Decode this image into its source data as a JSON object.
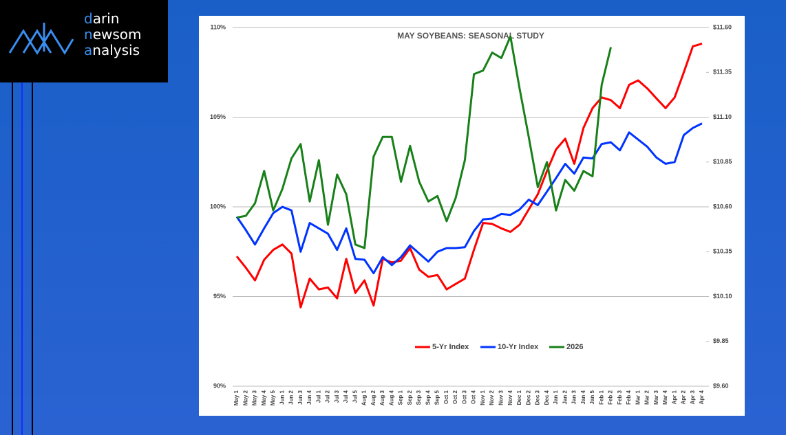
{
  "logo": {
    "lines": [
      "darin",
      "newsom",
      "analysis"
    ]
  },
  "chart_data": {
    "type": "line",
    "title": "MAY SOYBEANS: SEASONAL STUDY",
    "categories": [
      "May 1",
      "May 2",
      "May 3",
      "May 4",
      "May 5",
      "Jun 1",
      "Jun 2",
      "Jun 3",
      "Jun 4",
      "Jul 1",
      "Jul 2",
      "Jul 3",
      "Jul 4",
      "Jul 5",
      "Aug 1",
      "Aug 2",
      "Aug 3",
      "Aug 4",
      "Sep 1",
      "Sep 2",
      "Sep 3",
      "Sep 4",
      "Sep 5",
      "Oct 1",
      "Oct 2",
      "Oct 3",
      "Oct 4",
      "Nov 1",
      "Nov 2",
      "Nov 3",
      "Nov 4",
      "Dec 1",
      "Dec 2",
      "Dec 3",
      "Dec 4",
      "Jan 1",
      "Jan 2",
      "Jan 3",
      "Jan 4",
      "Jan 5",
      "Feb 1",
      "Feb 2",
      "Feb 3",
      "Feb 4",
      "Mar 1",
      "Mar 2",
      "Mar 3",
      "Mar 4",
      "Apr 1",
      "Apr 2",
      "Apr 3",
      "Apr 4"
    ],
    "series": [
      {
        "name": "5-Yr Index",
        "color": "#ff0000",
        "values": [
          97.24,
          96.6,
          95.9,
          97.05,
          97.6,
          97.9,
          97.4,
          94.4,
          96.0,
          95.4,
          95.5,
          94.9,
          97.1,
          95.2,
          95.9,
          94.5,
          97.1,
          96.9,
          97.0,
          97.7,
          96.5,
          96.1,
          96.2,
          95.4,
          95.7,
          96.0,
          97.6,
          99.1,
          99.05,
          98.8,
          98.6,
          99.0,
          99.85,
          100.7,
          102.0,
          103.2,
          103.8,
          102.4,
          104.4,
          105.5,
          106.1,
          105.95,
          105.5,
          106.8,
          107.05,
          106.6,
          106.05,
          105.5,
          106.1,
          107.5,
          108.95,
          109.1
        ]
      },
      {
        "name": "10-Yr Index",
        "color": "#0033ff",
        "values": [
          99.45,
          98.7,
          97.9,
          98.8,
          99.65,
          100.0,
          99.8,
          97.5,
          99.1,
          98.8,
          98.5,
          97.6,
          98.8,
          97.1,
          97.05,
          96.3,
          97.2,
          96.75,
          97.2,
          97.85,
          97.4,
          96.95,
          97.5,
          97.7,
          97.7,
          97.75,
          98.65,
          99.3,
          99.35,
          99.6,
          99.55,
          99.85,
          100.4,
          100.1,
          100.85,
          101.6,
          102.4,
          101.85,
          102.75,
          102.7,
          103.5,
          103.6,
          103.15,
          104.15,
          103.75,
          103.35,
          102.75,
          102.4,
          102.5,
          104.0,
          104.4,
          104.65
        ]
      },
      {
        "name": "2026",
        "color": "#188018",
        "axis": "y2",
        "values": [
          10.54,
          10.55,
          10.62,
          10.8,
          10.58,
          10.7,
          10.87,
          10.95,
          10.63,
          10.86,
          10.5,
          10.78,
          10.67,
          10.39,
          10.37,
          10.88,
          10.99,
          10.99,
          10.74,
          10.94,
          10.74,
          10.63,
          10.66,
          10.52,
          10.65,
          10.86,
          11.34,
          11.36,
          11.46,
          11.43,
          11.55,
          11.26,
          10.99,
          10.71,
          10.85,
          10.58,
          10.75,
          10.69,
          10.8,
          10.77,
          11.28,
          11.49,
          null,
          null,
          null,
          null,
          null,
          null,
          null,
          null,
          null,
          null
        ]
      }
    ],
    "ylim": [
      90,
      110
    ],
    "yticks": [
      {
        "value": 90,
        "label": "90%"
      },
      {
        "value": 95,
        "label": "95%"
      },
      {
        "value": 100,
        "label": "100%"
      },
      {
        "value": 105,
        "label": "105%"
      },
      {
        "value": 110,
        "label": "110%"
      }
    ],
    "y2lim": [
      9.6,
      11.6
    ],
    "y2ticks": [
      {
        "value": 9.6,
        "label": "$9.60"
      },
      {
        "value": 9.85,
        "label": "$9.85"
      },
      {
        "value": 10.1,
        "label": "$10.10"
      },
      {
        "value": 10.35,
        "label": "$10.35"
      },
      {
        "value": 10.6,
        "label": "$10.60"
      },
      {
        "value": 10.85,
        "label": "$10.85"
      },
      {
        "value": 11.1,
        "label": "$11.10"
      },
      {
        "value": 11.35,
        "label": "$11.35"
      },
      {
        "value": 11.6,
        "label": "$11.60"
      }
    ],
    "grid": true,
    "legend": "bottom"
  }
}
